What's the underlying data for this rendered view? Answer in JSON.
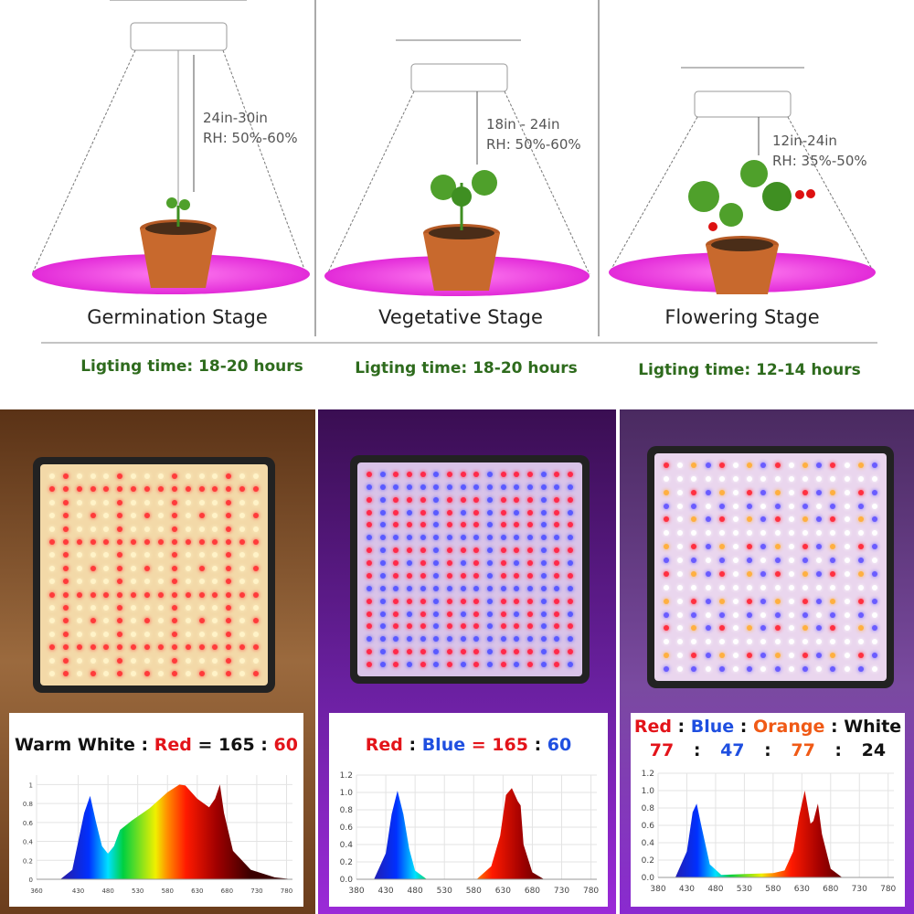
{
  "stages": [
    {
      "name": "Germination Stage",
      "distance": "24in-30in",
      "rh": "RH: 50%-60%",
      "lighting": "Ligting time: 18-20 hours"
    },
    {
      "name": "Vegetative Stage",
      "distance": "18in - 24in",
      "rh": "RH: 50%-60%",
      "lighting": "Ligting time: 18-20 hours"
    },
    {
      "name": "Flowering Stage",
      "distance": "12in-24in",
      "rh": "RH: 35%-50%",
      "lighting": "Ligting time: 12-14 hours"
    }
  ],
  "panels": [
    {
      "label_a": "Warm White",
      "sep1": " : ",
      "label_b": "Red",
      "eq": " = ",
      "v1": "165",
      "sep2": " : ",
      "v2": "60",
      "bg": "#6b3d1c",
      "led_colors": [
        "#fff3c8",
        "#fff3c8",
        "#fff3c8",
        "#ff3b3b"
      ]
    },
    {
      "label_a": "Red",
      "sep1": " : ",
      "label_b": "Blue",
      "eq": " = ",
      "v1": "165",
      "sep2": " : ",
      "v2": "60",
      "bg": "#7a22b8",
      "led_colors": [
        "#ff2a4a",
        "#ff2a4a",
        "#ff2a4a",
        "#5a5aff"
      ]
    },
    {
      "l1": "Red",
      "l2": "Blue",
      "l3": "Orange",
      "l4": "White",
      "sep": " : ",
      "v1": "77",
      "v2": "47",
      "v3": "77",
      "v4": "24",
      "bg": "#7a22b8",
      "led_colors": [
        "#ff3040",
        "#6a5cff",
        "#ffb040",
        "#ffffff"
      ]
    }
  ],
  "chart_data": [
    {
      "type": "area",
      "xlim": [
        360,
        790
      ],
      "ylim": [
        0,
        1.1
      ],
      "xticks": [
        360,
        430,
        480,
        530,
        580,
        630,
        680,
        730,
        780
      ],
      "yticks": [
        "0",
        "0.2",
        "0.4",
        "0.6",
        "0.8",
        "1"
      ],
      "grid": true,
      "points": [
        [
          400,
          0
        ],
        [
          420,
          0.1
        ],
        [
          440,
          0.7
        ],
        [
          450,
          0.88
        ],
        [
          460,
          0.6
        ],
        [
          470,
          0.35
        ],
        [
          480,
          0.27
        ],
        [
          490,
          0.35
        ],
        [
          500,
          0.52
        ],
        [
          520,
          0.62
        ],
        [
          550,
          0.75
        ],
        [
          580,
          0.92
        ],
        [
          600,
          1.0
        ],
        [
          610,
          0.99
        ],
        [
          630,
          0.85
        ],
        [
          650,
          0.76
        ],
        [
          660,
          0.85
        ],
        [
          668,
          1.0
        ],
        [
          675,
          0.7
        ],
        [
          690,
          0.3
        ],
        [
          720,
          0.1
        ],
        [
          760,
          0.02
        ],
        [
          790,
          0
        ]
      ]
    },
    {
      "type": "area",
      "xlim": [
        380,
        790
      ],
      "ylim": [
        0,
        1.2
      ],
      "xticks": [
        380,
        430,
        480,
        530,
        580,
        630,
        680,
        730,
        780
      ],
      "yticks": [
        "0.0",
        "0.2",
        "0.4",
        "0.6",
        "0.8",
        "1.0",
        "1.2"
      ],
      "grid": true,
      "points": [
        [
          410,
          0
        ],
        [
          430,
          0.3
        ],
        [
          440,
          0.75
        ],
        [
          450,
          1.02
        ],
        [
          460,
          0.75
        ],
        [
          470,
          0.35
        ],
        [
          480,
          0.1
        ],
        [
          500,
          0
        ],
        [
          585,
          0
        ],
        [
          610,
          0.15
        ],
        [
          625,
          0.5
        ],
        [
          635,
          0.97
        ],
        [
          645,
          1.05
        ],
        [
          655,
          0.9
        ],
        [
          660,
          0.85
        ],
        [
          665,
          0.4
        ],
        [
          680,
          0.08
        ],
        [
          700,
          0
        ]
      ]
    },
    {
      "type": "area",
      "xlim": [
        380,
        790
      ],
      "ylim": [
        0,
        1.2
      ],
      "xticks": [
        380,
        430,
        480,
        530,
        580,
        630,
        680,
        730,
        780
      ],
      "yticks": [
        "0.0",
        "0.2",
        "0.4",
        "0.6",
        "0.8",
        "1.0",
        "1.2"
      ],
      "grid": true,
      "points": [
        [
          410,
          0
        ],
        [
          430,
          0.3
        ],
        [
          440,
          0.75
        ],
        [
          447,
          0.85
        ],
        [
          455,
          0.6
        ],
        [
          470,
          0.15
        ],
        [
          490,
          0.03
        ],
        [
          530,
          0.04
        ],
        [
          580,
          0.05
        ],
        [
          600,
          0.08
        ],
        [
          615,
          0.3
        ],
        [
          625,
          0.7
        ],
        [
          635,
          1.0
        ],
        [
          645,
          0.62
        ],
        [
          650,
          0.65
        ],
        [
          658,
          0.85
        ],
        [
          665,
          0.5
        ],
        [
          680,
          0.1
        ],
        [
          700,
          0
        ]
      ]
    }
  ]
}
